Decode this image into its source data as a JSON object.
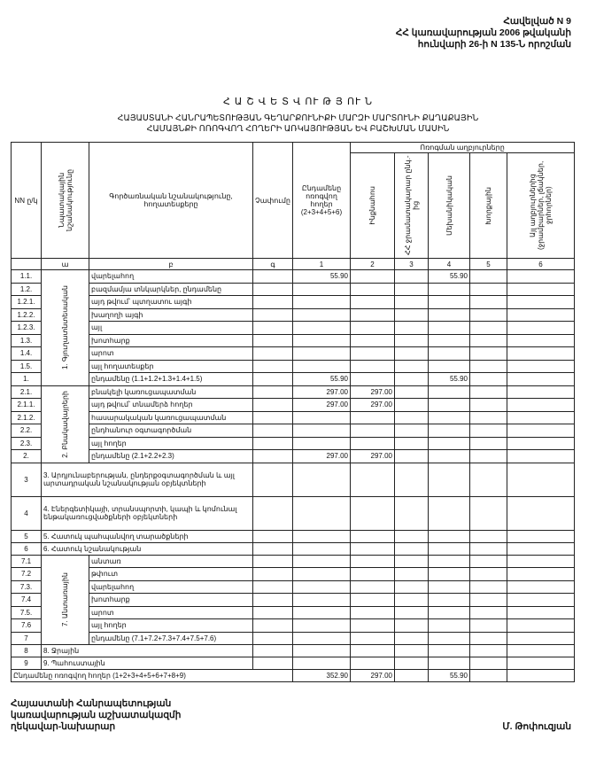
{
  "header": {
    "lines": [
      "Հավելված N 9",
      "ՀՀ կառավարության 2006 թվականի",
      "հունվարի 26-ի N 135-Ն որոշման"
    ]
  },
  "title": "Հ Ա Շ Վ Ե Տ Վ ՈՒ Թ Յ ՈՒ Ն",
  "subtitle": [
    "ՀԱՅԱՍՏԱՆԻ ՀԱՆՐԱՊԵՏՈՒԹՅԱՆ ԳԵՂԱՐՔՈՒՆԻՔԻ ՄԱՐԶԻ ՄԱՐՏՈՒՆԻ ՔԱՂԱՔԱՅԻՆ",
    "ՀԱՄԱՅՆՔԻ ՈՌՈԳՎՈՂ ՀՈՂԵՐԻ ԱՌԿԱՅՈՒԹՅԱՆ ԵՎ ԲԱՇԽՄԱՆ ՄԱՍԻՆ"
  ],
  "table": {
    "columns": [
      "NN ը/կ",
      "Նպատակային նշանակությունը",
      "Գործառնական նշանակությունը, հողատեսքերը",
      "Չափումը",
      "Ընդամենը ոռոգվող հողեր (2+3+4+5+6)",
      "Ինքնահոս",
      "ՀՀ ջրամատակարար ընկ.-ից",
      "Մեխանիկական",
      "Խորքային",
      "Այլ աղբյուրներից (ջրամբարներ, լճակներ, ջրհորներ)"
    ],
    "sources_header": "Ոռոգման աղբյուրները",
    "index": [
      "ա",
      "բ",
      "գ",
      "1",
      "2",
      "3",
      "4",
      "5",
      "6"
    ],
    "sections": [
      {
        "label": "1. Գյուղատնտեսական",
        "rows": [
          {
            "no": "1.1.",
            "name": "վարելահող",
            "values": {
              "1": "55.90",
              "4": "55.90"
            }
          },
          {
            "no": "1.2.",
            "name": "բազմամյա տնկարկներ, ընդամենը",
            "values": {}
          },
          {
            "no": "1.2.1.",
            "name": "այդ թվում՝ պտղատու այգի",
            "values": {}
          },
          {
            "no": "1.2.2.",
            "name": "խաղողի այգի",
            "values": {}
          },
          {
            "no": "1.2.3.",
            "name": "այլ",
            "values": {}
          },
          {
            "no": "1.3.",
            "name": "խոտհարք",
            "values": {}
          },
          {
            "no": "1.4.",
            "name": "արոտ",
            "values": {}
          },
          {
            "no": "1.5.",
            "name": "այլ հողատեսքեր",
            "values": {}
          },
          {
            "no": "1.",
            "name": "ընդամենը (1.1+1.2+1.3+1.4+1.5)",
            "values": {
              "1": "55.90",
              "4": "55.90"
            }
          }
        ]
      },
      {
        "label": "2. Բնակավայրերի",
        "rows": [
          {
            "no": "2.1.",
            "name": "բնակելի կառուցապատման",
            "values": {
              "1": "297.00",
              "2": "297.00"
            }
          },
          {
            "no": "2.1.1.",
            "name": "այդ թվում՝ տնամերձ հողեր",
            "values": {
              "1": "297.00",
              "2": "297.00"
            }
          },
          {
            "no": "2.1.2.",
            "name": "հասարակական կառուցապատման",
            "values": {}
          },
          {
            "no": "2.2.",
            "name": "ընդհանուր օգտագործման",
            "values": {}
          },
          {
            "no": "2.3.",
            "name": "այլ հողեր",
            "values": {}
          },
          {
            "no": "2.",
            "name": "ընդամենը (2.1+2.2+2.3)",
            "values": {
              "1": "297.00",
              "2": "297.00"
            }
          }
        ]
      },
      {
        "rows": [
          {
            "no": "3",
            "name": "3. Արդյունաբերության, ընդերքօգտագործման և այլ արտադրական նշանակության օբյեկտների",
            "values": {}
          },
          {
            "no": "4",
            "name": "4. Էներգետիկայի, տրանսպորտի, կապի և կոմունալ ենթակառուցվածքների օբյեկտների",
            "values": {}
          },
          {
            "no": "5",
            "name": "5. Հատուկ պահպանվող տարածքների",
            "values": {}
          },
          {
            "no": "6",
            "name": "6. Հատուկ նշանակության",
            "values": {}
          }
        ]
      },
      {
        "label": "7. Անտառային",
        "rows": [
          {
            "no": "7.1",
            "name": "անտառ",
            "values": {}
          },
          {
            "no": "7.2",
            "name": "թփուտ",
            "values": {}
          },
          {
            "no": "7.3.",
            "name": "վարելահող",
            "values": {}
          },
          {
            "no": "7.4",
            "name": "խոտհարք",
            "values": {}
          },
          {
            "no": "7.5.",
            "name": "արոտ",
            "values": {}
          },
          {
            "no": "7.6",
            "name": "այլ հողեր",
            "values": {}
          },
          {
            "no": "7",
            "name": "ընդամենը (7.1+7.2+7.3+7.4+7.5+7.6)",
            "values": {}
          }
        ]
      },
      {
        "rows": [
          {
            "no": "8",
            "name": "8. Ջրային",
            "values": {}
          },
          {
            "no": "9",
            "name": "9. Պահուստային",
            "values": {}
          }
        ]
      }
    ],
    "total": {
      "name": "Ընդամենը ոռոգվող հողեր (1+2+3+4+5+6+7+8+9)",
      "values": {
        "1": "352.90",
        "2": "297.00",
        "4": "55.90"
      }
    }
  },
  "footer": {
    "left": [
      "Հայաստանի Հանրապետության",
      "կառավարության աշխատակազմի",
      "ղեկավար-նախարար"
    ],
    "right": "Մ. Թոփուզյան"
  }
}
